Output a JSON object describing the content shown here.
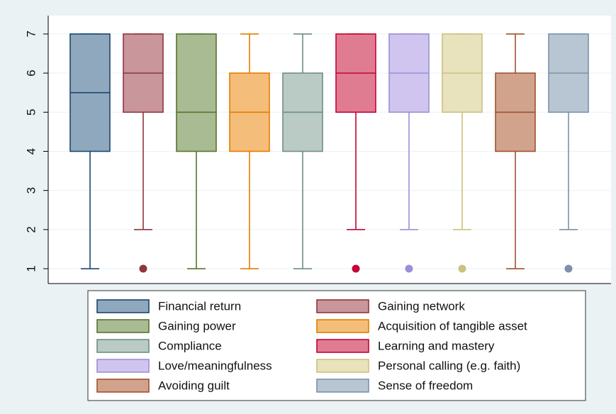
{
  "chart_data": {
    "type": "box",
    "ylim": [
      0.62,
      7.47
    ],
    "yticks": [
      1,
      2,
      3,
      4,
      5,
      6,
      7
    ],
    "grid": true,
    "legend": "bottom",
    "legend_columns": 2,
    "series": [
      {
        "name": "Financial return",
        "color": "#90a8be",
        "edgecolor": "#1a476f",
        "min": 1,
        "q1": 4,
        "median": 5.5,
        "q3": 7,
        "max": 7,
        "outliers": []
      },
      {
        "name": "Gaining network",
        "color": "#c8969b",
        "edgecolor": "#90353b",
        "min": 2,
        "q1": 5,
        "median": 6,
        "q3": 7,
        "max": 7,
        "outliers": [
          1
        ]
      },
      {
        "name": "Gaining power",
        "color": "#a9bb93",
        "edgecolor": "#55752f",
        "min": 1,
        "q1": 4,
        "median": 5,
        "q3": 7,
        "max": 7,
        "outliers": []
      },
      {
        "name": "Acquisition of tangible asset",
        "color": "#f4bd79",
        "edgecolor": "#e37e00",
        "min": 1,
        "q1": 4,
        "median": 5,
        "q3": 6,
        "max": 7,
        "outliers": []
      },
      {
        "name": "Compliance",
        "color": "#bacbc6",
        "edgecolor": "#6e8e84",
        "min": 1,
        "q1": 4,
        "median": 5,
        "q3": 6,
        "max": 7,
        "outliers": []
      },
      {
        "name": "Learning and mastery",
        "color": "#e07c91",
        "edgecolor": "#c10534",
        "min": 2,
        "q1": 5,
        "median": 6,
        "q3": 7,
        "max": 7,
        "outliers": [
          1
        ]
      },
      {
        "name": "Love/meaningfulness",
        "color": "#cfc5ef",
        "edgecolor": "#9c8fd6",
        "min": 2,
        "q1": 5,
        "median": 6,
        "q3": 7,
        "max": 7,
        "outliers": [
          1
        ]
      },
      {
        "name": "Personal calling (e.g. faith)",
        "color": "#e8e2bd",
        "edgecolor": "#cac27e",
        "min": 2,
        "q1": 5,
        "median": 6,
        "q3": 7,
        "max": 7,
        "outliers": [
          1
        ]
      },
      {
        "name": "Avoiding guilt",
        "color": "#d1a38c",
        "edgecolor": "#a0522d",
        "min": 1,
        "q1": 4,
        "median": 5,
        "q3": 6,
        "max": 7,
        "outliers": []
      },
      {
        "name": "Sense of freedom",
        "color": "#b8c6d3",
        "edgecolor": "#7b92a8",
        "min": 2,
        "q1": 5,
        "median": 6,
        "q3": 7,
        "max": 7,
        "outliers": [
          1
        ]
      }
    ]
  }
}
